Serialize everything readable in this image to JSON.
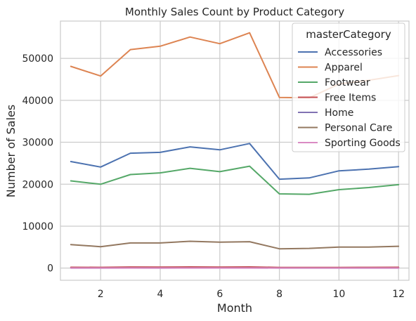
{
  "chart_data": {
    "type": "line",
    "title": "Monthly Sales Count by Product Category",
    "xlabel": "Month",
    "ylabel": "Number of Sales",
    "x": [
      1,
      2,
      3,
      4,
      5,
      6,
      7,
      8,
      9,
      10,
      11,
      12
    ],
    "xlim": [
      0.65,
      12.35
    ],
    "ylim": [
      -2900,
      58900
    ],
    "xticks": [
      2,
      4,
      6,
      8,
      10,
      12
    ],
    "yticks": [
      0,
      10000,
      20000,
      30000,
      40000,
      50000
    ],
    "grid": true,
    "legend": {
      "title": "masterCategory",
      "placement": "top-right"
    },
    "series": [
      {
        "name": "Accessories",
        "color": "#4c72b0",
        "values": [
          25400,
          24100,
          27400,
          27600,
          28900,
          28200,
          29700,
          21200,
          21500,
          23200,
          23600,
          24200
        ]
      },
      {
        "name": "Apparel",
        "color": "#dd8452",
        "values": [
          48100,
          45800,
          52100,
          52900,
          55100,
          53500,
          56100,
          40700,
          40600,
          43900,
          44800,
          45900
        ]
      },
      {
        "name": "Footwear",
        "color": "#55a868",
        "values": [
          20800,
          20000,
          22300,
          22700,
          23800,
          23000,
          24300,
          17700,
          17600,
          18700,
          19200,
          19900
        ]
      },
      {
        "name": "Free Items",
        "color": "#c44e52",
        "values": [
          200,
          190,
          260,
          240,
          280,
          250,
          290,
          160,
          150,
          170,
          180,
          200
        ]
      },
      {
        "name": "Home",
        "color": "#8172b3",
        "values": [
          20,
          18,
          25,
          22,
          30,
          27,
          28,
          12,
          14,
          16,
          15,
          20
        ]
      },
      {
        "name": "Personal Care",
        "color": "#937860",
        "values": [
          5600,
          5100,
          6000,
          6000,
          6400,
          6200,
          6300,
          4600,
          4700,
          5000,
          5000,
          5200
        ]
      },
      {
        "name": "Sporting Goods",
        "color": "#da8bc3",
        "values": [
          10,
          10,
          12,
          11,
          14,
          12,
          13,
          8,
          9,
          9,
          10,
          11
        ]
      }
    ]
  }
}
